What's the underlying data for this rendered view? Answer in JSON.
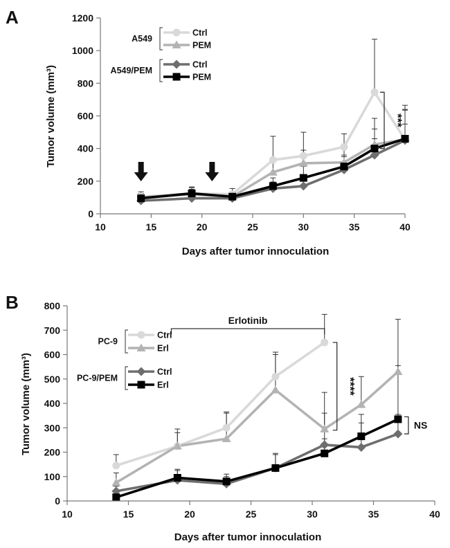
{
  "chart_data": [
    {
      "panel": "A",
      "type": "line",
      "xlabel": "Days after tumor innoculation",
      "ylabel": "Tumor volume (mm³)",
      "xlim": [
        10,
        40
      ],
      "ylim": [
        0,
        1200
      ],
      "xticks": [
        10,
        15,
        20,
        25,
        30,
        35,
        40
      ],
      "yticks": [
        0,
        200,
        400,
        600,
        800,
        1000,
        1200
      ],
      "x": [
        14,
        19,
        23,
        27,
        30,
        34,
        37,
        40
      ],
      "legend_groups": [
        {
          "label": "A549",
          "series": [
            0,
            1
          ]
        },
        {
          "label": "A549/PEM",
          "series": [
            2,
            3
          ]
        }
      ],
      "series": [
        {
          "name": "Ctrl",
          "group": "A549",
          "color": "#d9d9d9",
          "marker": "circle",
          "values": [
            105,
            125,
            120,
            330,
            355,
            410,
            745,
            455
          ],
          "err": [
            30,
            40,
            35,
            145,
            145,
            80,
            325,
            210
          ]
        },
        {
          "name": "PEM",
          "group": "A549",
          "color": "#b3b3b3",
          "marker": "triangle",
          "values": [
            100,
            120,
            105,
            255,
            310,
            315,
            425,
            455
          ],
          "err": [
            25,
            30,
            30,
            60,
            80,
            80,
            160,
            180
          ]
        },
        {
          "name": "Ctrl",
          "group": "A549/PEM",
          "color": "#6e6e6e",
          "marker": "diamond",
          "values": [
            80,
            95,
            95,
            155,
            170,
            270,
            360,
            450
          ],
          "err": [
            20,
            25,
            25,
            40,
            50,
            80,
            100,
            100
          ]
        },
        {
          "name": "PEM",
          "group": "A549/PEM",
          "color": "#000000",
          "marker": "square",
          "values": [
            95,
            125,
            105,
            170,
            220,
            290,
            400,
            460
          ],
          "err": [
            25,
            35,
            30,
            50,
            70,
            70,
            120,
            180
          ]
        }
      ],
      "arrows_at_days": [
        14,
        21
      ],
      "significance": {
        "label": "***",
        "x": 37
      }
    },
    {
      "panel": "B",
      "type": "line",
      "xlabel": "Days after tumor innoculation",
      "ylabel": "Tumor volume (mm³)",
      "xlim": [
        10,
        40
      ],
      "ylim": [
        0,
        800
      ],
      "xticks": [
        10,
        15,
        20,
        25,
        30,
        35,
        40
      ],
      "yticks": [
        0,
        100,
        200,
        300,
        400,
        500,
        600,
        700,
        800
      ],
      "x": [
        14,
        19,
        23,
        27,
        31,
        34,
        37
      ],
      "treatment_bar": {
        "label": "Erlotinib",
        "start": 18.5,
        "end": 31
      },
      "legend_groups": [
        {
          "label": "PC-9",
          "series": [
            0,
            1
          ]
        },
        {
          "label": "PC-9/PEM",
          "series": [
            2,
            3
          ]
        }
      ],
      "series": [
        {
          "name": "Ctrl",
          "group": "PC-9",
          "color": "#d9d9d9",
          "marker": "circle",
          "values": [
            145,
            225,
            300,
            510,
            650,
            null,
            null
          ],
          "err": [
            45,
            70,
            65,
            100,
            115,
            null,
            null
          ]
        },
        {
          "name": "Erl",
          "group": "PC-9",
          "color": "#b3b3b3",
          "marker": "triangle",
          "values": [
            75,
            225,
            255,
            455,
            295,
            395,
            530
          ],
          "err": [
            40,
            55,
            105,
            145,
            150,
            115,
            215
          ]
        },
        {
          "name": "Ctrl",
          "group": "PC-9/PEM",
          "color": "#6e6e6e",
          "marker": "diamond",
          "values": [
            40,
            85,
            70,
            135,
            230,
            220,
            275
          ],
          "err": [
            20,
            40,
            30,
            60,
            130,
            100,
            80
          ]
        },
        {
          "name": "Erl",
          "group": "PC-9/PEM",
          "color": "#000000",
          "marker": "square",
          "values": [
            15,
            95,
            80,
            135,
            195,
            265,
            335
          ],
          "err": [
            10,
            35,
            30,
            55,
            60,
            90,
            220
          ]
        }
      ],
      "significance": [
        {
          "label": "****",
          "x": 31
        },
        {
          "label": "NS",
          "x": 37
        }
      ]
    }
  ]
}
